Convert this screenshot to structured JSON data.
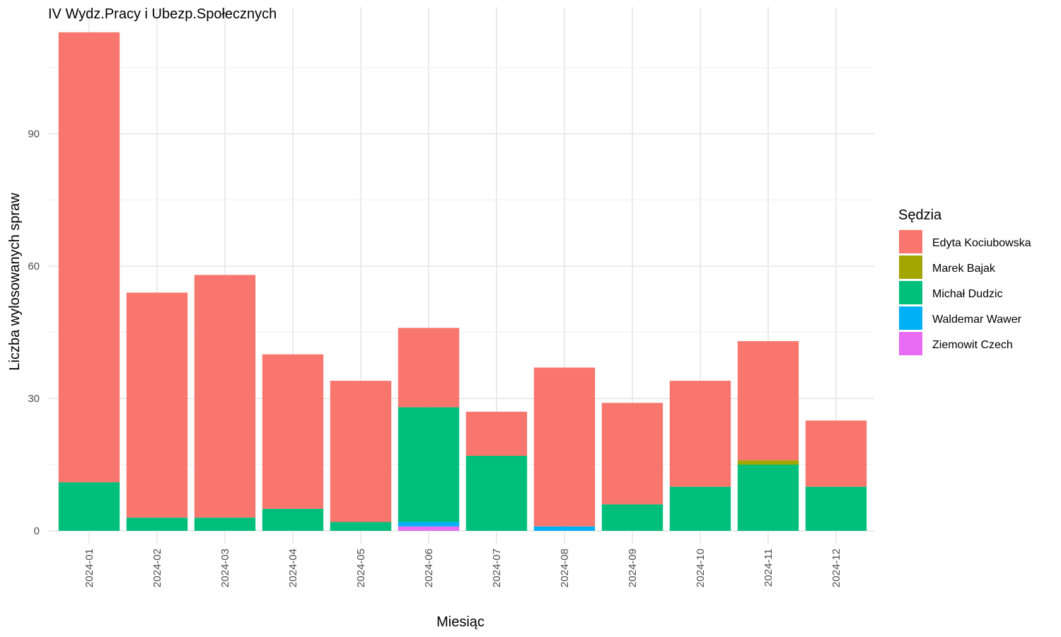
{
  "chart_data": {
    "type": "bar",
    "stacked": true,
    "title": "IV Wydz.Pracy i Ubezp.Społecznych",
    "xlabel": "Miesiąc",
    "ylabel": "Liczba wylosowanych spraw",
    "ylim": [
      0,
      118
    ],
    "yticks": [
      0,
      30,
      60,
      90
    ],
    "grid": true,
    "legend": {
      "title": "Sędzia",
      "position": "right"
    },
    "categories": [
      "2024-01",
      "2024-02",
      "2024-03",
      "2024-04",
      "2024-05",
      "2024-06",
      "2024-07",
      "2024-08",
      "2024-09",
      "2024-10",
      "2024-11",
      "2024-12"
    ],
    "series": [
      {
        "name": "Ziemowit Czech",
        "color": "#E76BF3",
        "values": [
          0,
          0,
          0,
          0,
          0,
          1,
          0,
          0,
          0,
          0,
          0,
          0
        ]
      },
      {
        "name": "Waldemar Wawer",
        "color": "#00B0F6",
        "values": [
          0,
          0,
          0,
          0,
          0,
          1,
          0,
          1,
          0,
          0,
          0,
          0
        ]
      },
      {
        "name": "Michał Dudzic",
        "color": "#00BF7D",
        "values": [
          11,
          3,
          3,
          5,
          2,
          26,
          17,
          0,
          6,
          10,
          15,
          10
        ]
      },
      {
        "name": "Marek Bajak",
        "color": "#A3A500",
        "values": [
          0,
          0,
          0,
          0,
          0,
          0,
          0,
          0,
          0,
          0,
          1,
          0
        ]
      },
      {
        "name": "Edyta Kociubowska",
        "color": "#F8766D",
        "values": [
          102,
          51,
          55,
          35,
          32,
          18,
          10,
          36,
          23,
          24,
          27,
          15
        ]
      }
    ],
    "legend_order": [
      "Edyta Kociubowska",
      "Marek Bajak",
      "Michał Dudzic",
      "Waldemar Wawer",
      "Ziemowit Czech"
    ]
  }
}
